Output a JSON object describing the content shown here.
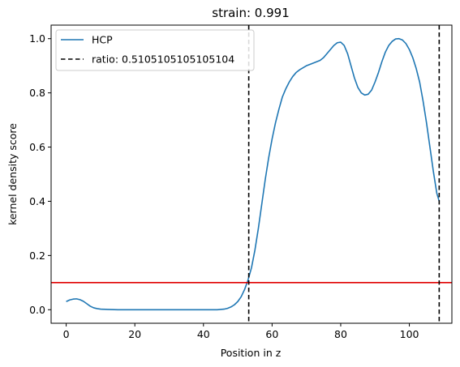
{
  "chart_data": {
    "type": "line",
    "title": "strain: 0.991",
    "xlabel": "Position in z",
    "ylabel": "kernel density score",
    "xlim": [
      -4.4,
      112.4
    ],
    "ylim": [
      -0.05,
      1.05
    ],
    "xticks": [
      0,
      20,
      40,
      60,
      80,
      100
    ],
    "yticks": [
      0.0,
      0.2,
      0.4,
      0.6,
      0.8,
      1.0
    ],
    "xtick_labels": [
      "0",
      "20",
      "40",
      "60",
      "80",
      "100"
    ],
    "ytick_labels": [
      "0.0",
      "0.2",
      "0.4",
      "0.6",
      "0.8",
      "1.0"
    ],
    "grid": false,
    "legend_position": "upper-left",
    "series": [
      {
        "name": "HCP",
        "color": "#1f77b4",
        "style": "solid",
        "points": [
          [
            0,
            0.03
          ],
          [
            1,
            0.036
          ],
          [
            2,
            0.039
          ],
          [
            3,
            0.04
          ],
          [
            4,
            0.037
          ],
          [
            5,
            0.031
          ],
          [
            6,
            0.022
          ],
          [
            7,
            0.013
          ],
          [
            8,
            0.007
          ],
          [
            9,
            0.004
          ],
          [
            10,
            0.002
          ],
          [
            12,
            0.001
          ],
          [
            15,
            0.0
          ],
          [
            20,
            0.0
          ],
          [
            25,
            0.0
          ],
          [
            30,
            0.0
          ],
          [
            35,
            0.0
          ],
          [
            40,
            0.0
          ],
          [
            44,
            0.0
          ],
          [
            46,
            0.002
          ],
          [
            47,
            0.005
          ],
          [
            48,
            0.01
          ],
          [
            49,
            0.018
          ],
          [
            50,
            0.03
          ],
          [
            51,
            0.048
          ],
          [
            52,
            0.075
          ],
          [
            53,
            0.11
          ],
          [
            54,
            0.155
          ],
          [
            55,
            0.22
          ],
          [
            56,
            0.3
          ],
          [
            57,
            0.39
          ],
          [
            58,
            0.48
          ],
          [
            59,
            0.56
          ],
          [
            60,
            0.63
          ],
          [
            61,
            0.69
          ],
          [
            62,
            0.74
          ],
          [
            63,
            0.785
          ],
          [
            64,
            0.815
          ],
          [
            65,
            0.84
          ],
          [
            66,
            0.86
          ],
          [
            67,
            0.875
          ],
          [
            68,
            0.885
          ],
          [
            70,
            0.9
          ],
          [
            72,
            0.91
          ],
          [
            74,
            0.92
          ],
          [
            75,
            0.93
          ],
          [
            76,
            0.945
          ],
          [
            77,
            0.96
          ],
          [
            78,
            0.975
          ],
          [
            79,
            0.985
          ],
          [
            80,
            0.987
          ],
          [
            81,
            0.975
          ],
          [
            82,
            0.945
          ],
          [
            83,
            0.9
          ],
          [
            84,
            0.855
          ],
          [
            85,
            0.82
          ],
          [
            86,
            0.8
          ],
          [
            87,
            0.792
          ],
          [
            88,
            0.795
          ],
          [
            89,
            0.81
          ],
          [
            90,
            0.84
          ],
          [
            91,
            0.875
          ],
          [
            92,
            0.915
          ],
          [
            93,
            0.95
          ],
          [
            94,
            0.975
          ],
          [
            95,
            0.99
          ],
          [
            96,
            0.999
          ],
          [
            97,
            1.0
          ],
          [
            98,
            0.995
          ],
          [
            99,
            0.982
          ],
          [
            100,
            0.96
          ],
          [
            101,
            0.93
          ],
          [
            102,
            0.89
          ],
          [
            103,
            0.84
          ],
          [
            104,
            0.77
          ],
          [
            105,
            0.69
          ],
          [
            106,
            0.6
          ],
          [
            107,
            0.51
          ],
          [
            108,
            0.43
          ],
          [
            108.7,
            0.4
          ]
        ]
      }
    ],
    "vlines": [
      {
        "name": "ratio: 0.5105105105105104",
        "x": 53.2,
        "color": "#000000",
        "style": "dashed"
      },
      {
        "x": 108.7,
        "color": "#000000",
        "style": "dashed"
      }
    ],
    "hlines": [
      {
        "y": 0.1,
        "color": "#e00000",
        "style": "solid"
      }
    ]
  }
}
